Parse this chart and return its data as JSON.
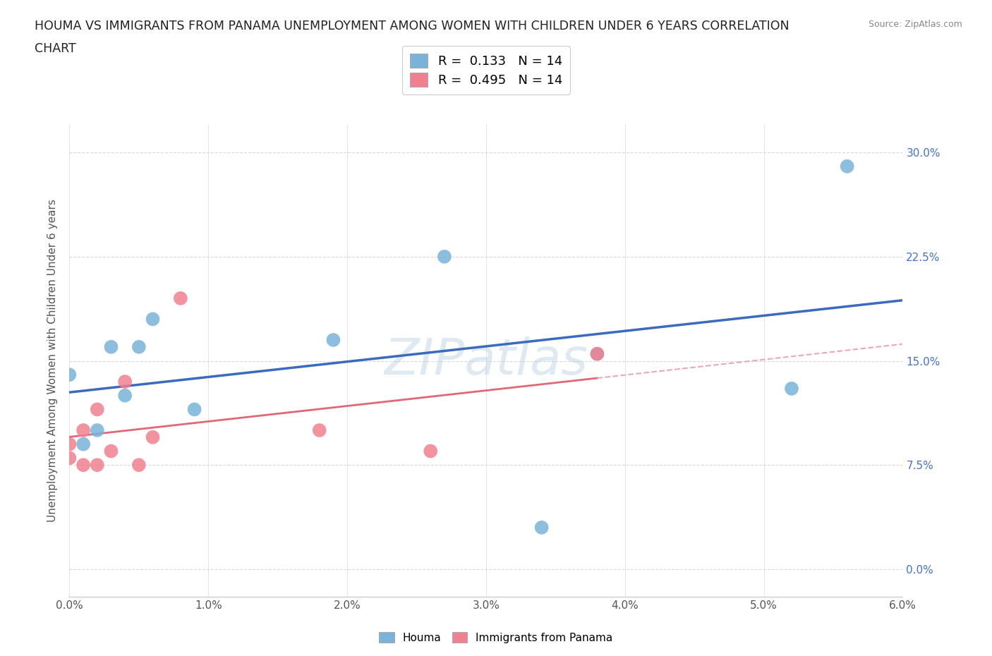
{
  "title_line1": "HOUMA VS IMMIGRANTS FROM PANAMA UNEMPLOYMENT AMONG WOMEN WITH CHILDREN UNDER 6 YEARS CORRELATION",
  "title_line2": "CHART",
  "source": "Source: ZipAtlas.com",
  "xlim": [
    0.0,
    0.06
  ],
  "ylim": [
    -0.02,
    0.32
  ],
  "ytick_vals": [
    0.0,
    0.075,
    0.15,
    0.225,
    0.3
  ],
  "xtick_vals": [
    0.0,
    0.01,
    0.02,
    0.03,
    0.04,
    0.05,
    0.06
  ],
  "legend_entries": [
    {
      "label": "R =  0.133   N = 14",
      "color": "#a8c8e8"
    },
    {
      "label": "R =  0.495   N = 14",
      "color": "#f4a0b0"
    }
  ],
  "houma_x": [
    0.0,
    0.001,
    0.002,
    0.003,
    0.004,
    0.005,
    0.006,
    0.009,
    0.019,
    0.027,
    0.034,
    0.038,
    0.052,
    0.056
  ],
  "houma_y": [
    0.14,
    0.09,
    0.1,
    0.16,
    0.125,
    0.16,
    0.18,
    0.115,
    0.165,
    0.225,
    0.03,
    0.155,
    0.13,
    0.29
  ],
  "panama_x": [
    0.0,
    0.0,
    0.001,
    0.001,
    0.002,
    0.002,
    0.003,
    0.004,
    0.005,
    0.006,
    0.008,
    0.018,
    0.026,
    0.038
  ],
  "panama_y": [
    0.08,
    0.09,
    0.075,
    0.1,
    0.075,
    0.115,
    0.085,
    0.135,
    0.075,
    0.095,
    0.195,
    0.1,
    0.085,
    0.155
  ],
  "houma_color": "#7ab3d9",
  "panama_color": "#f08090",
  "houma_trend_color": "#3a6bbf",
  "panama_trend_color": "#e06878",
  "panama_trend_dashed_color": "#e8aab5",
  "watermark": "ZIPatlas",
  "ylabel": "Unemployment Among Women with Children Under 6 years",
  "background_color": "#ffffff",
  "grid_color": "#d8d8d8",
  "plot_bottom_label": [
    "Houma",
    "Immigrants from Panama"
  ]
}
